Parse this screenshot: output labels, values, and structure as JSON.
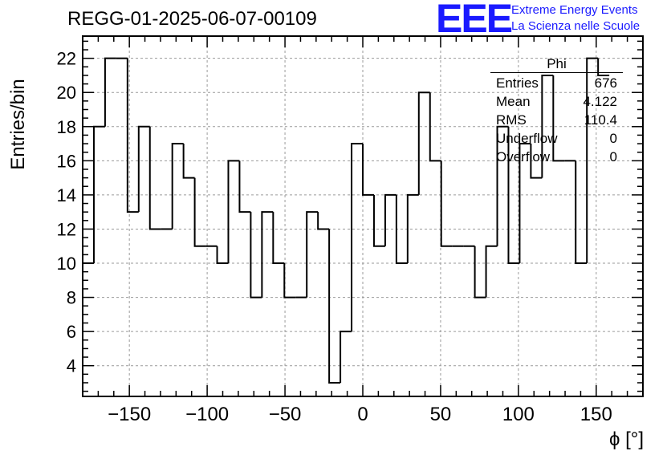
{
  "header": {
    "run_title": "REGG-01-2025-06-07-00109",
    "logo_text": "EEE",
    "logo_line1": "Extreme Energy Events",
    "logo_line2": "La Scienza nelle Scuole"
  },
  "stats_box": {
    "title": "Phi",
    "rows": [
      {
        "key": "Entries",
        "value": "676"
      },
      {
        "key": "Mean",
        "value": "4.122"
      },
      {
        "key": "RMS",
        "value": "110.4"
      },
      {
        "key": "Underflow",
        "value": "0"
      },
      {
        "key": "Overflow",
        "value": "0"
      }
    ]
  },
  "colors": {
    "logo": "#1a1aff",
    "line": "#000000",
    "grid": "#9a9a9a"
  },
  "chart_data": {
    "type": "histogram",
    "xlabel": "ϕ [°]",
    "ylabel": "Entries/bin",
    "xlim": [
      -180,
      180
    ],
    "ylim": [
      2.2,
      23.3
    ],
    "grid": true,
    "bin_edges_start": -180,
    "bin_width": 7.2,
    "values": [
      10,
      18,
      22,
      22,
      13,
      18,
      12,
      12,
      17,
      15,
      11,
      11,
      10,
      16,
      13,
      8,
      13,
      10,
      8,
      8,
      13,
      12,
      3,
      6,
      17,
      14,
      11,
      14,
      10,
      14,
      20,
      16,
      11,
      11,
      11,
      8,
      11,
      18,
      10,
      17,
      15,
      21,
      16,
      16,
      10,
      22,
      21
    ],
    "x_ticks": [
      -150,
      -100,
      -50,
      0,
      50,
      100,
      150
    ],
    "x_tick_labels": [
      "−150",
      "−100",
      "−50",
      "0",
      "50",
      "100",
      "150"
    ],
    "y_ticks": [
      4,
      6,
      8,
      10,
      12,
      14,
      16,
      18,
      20,
      22
    ],
    "y_tick_labels": [
      "4",
      "6",
      "8",
      "10",
      "12",
      "14",
      "16",
      "18",
      "20",
      "22"
    ]
  }
}
